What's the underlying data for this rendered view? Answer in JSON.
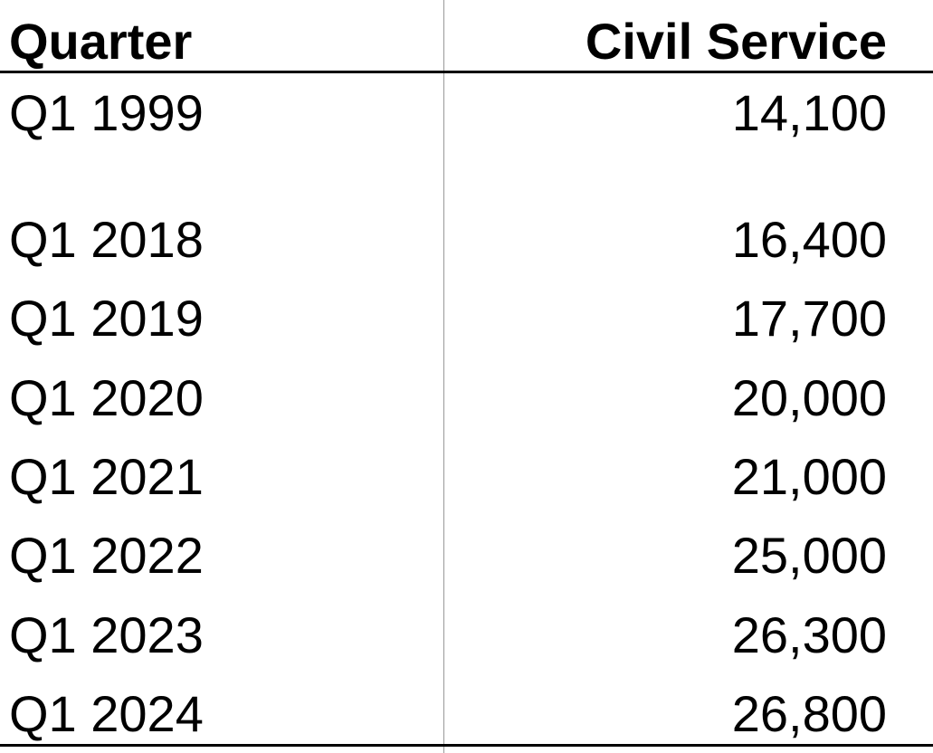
{
  "table": {
    "columns": [
      "Quarter",
      "Civil Service"
    ],
    "rows": [
      [
        "Q1 1999",
        "14,100"
      ],
      [
        "Q1 2018",
        "16,400"
      ],
      [
        "Q1 2019",
        "17,700"
      ],
      [
        "Q1 2020",
        "20,000"
      ],
      [
        "Q1 2021",
        "21,000"
      ],
      [
        "Q1 2022",
        "25,000"
      ],
      [
        "Q1 2023",
        "26,300"
      ],
      [
        "Q1 2024",
        "26,800"
      ]
    ]
  }
}
